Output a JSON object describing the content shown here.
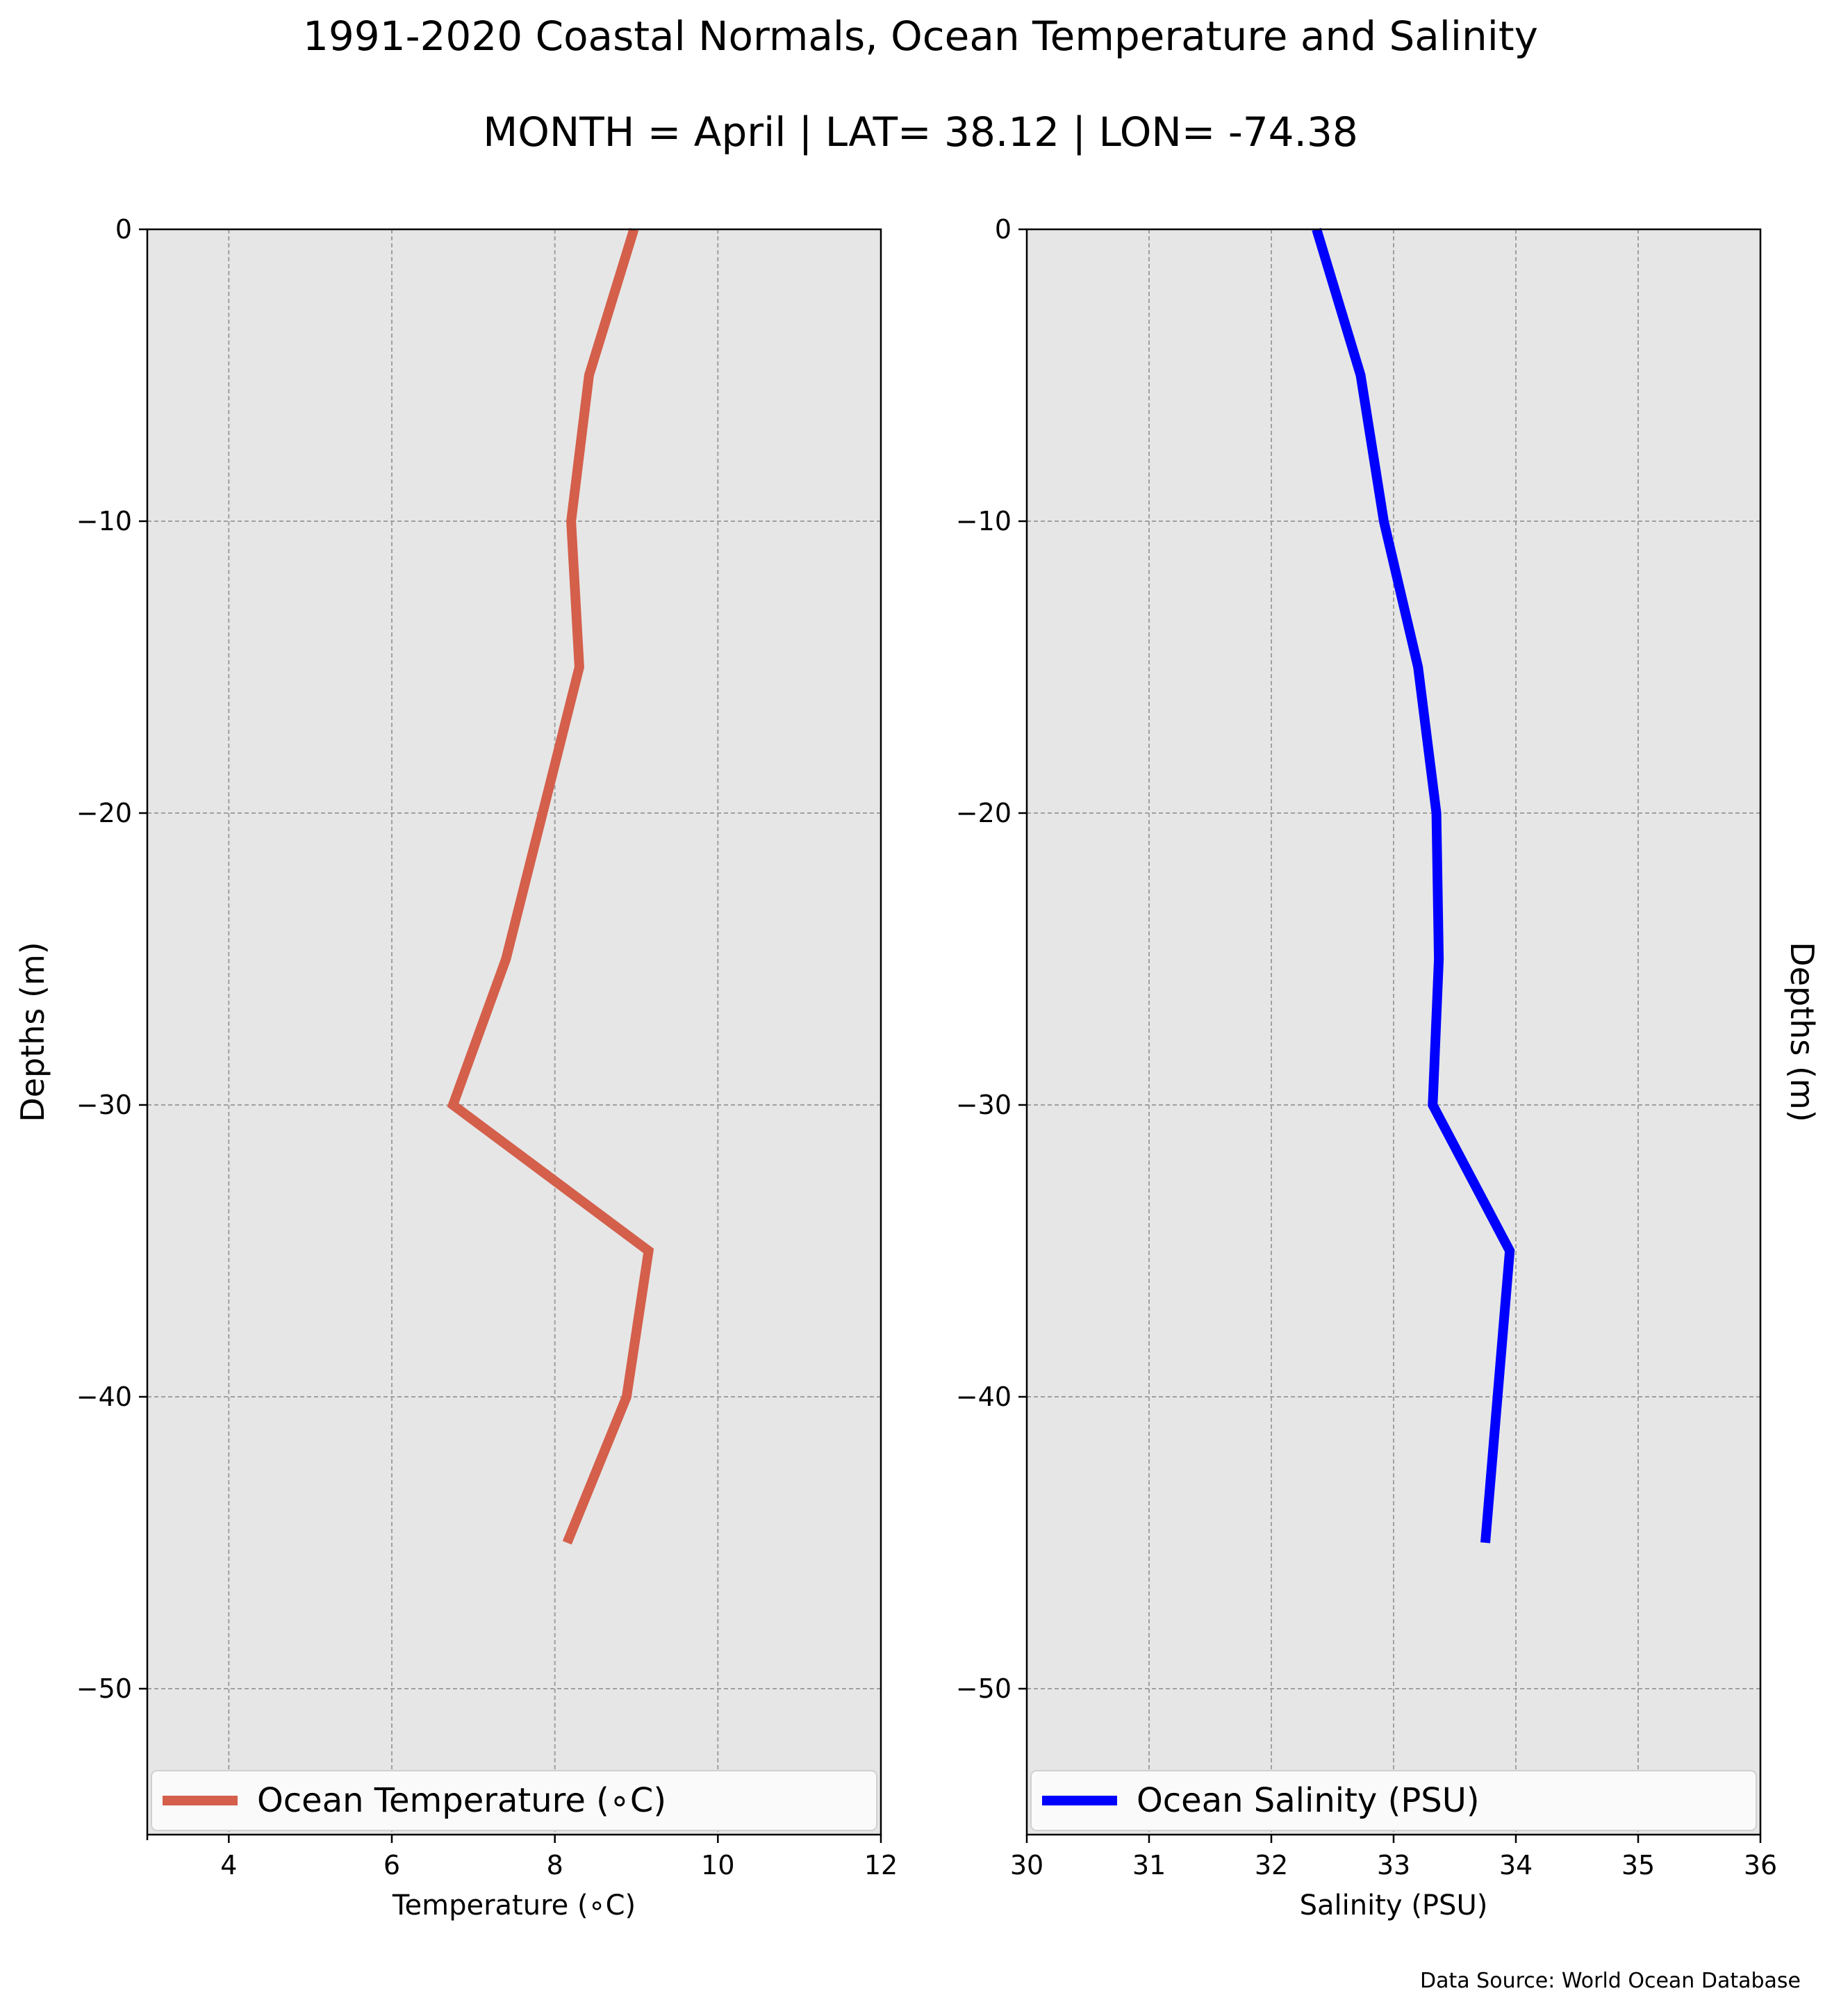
{
  "title": "1991-2020 Coastal Normals, Ocean Temperature and Salinity",
  "subtitle": "MONTH = April | LAT= 38.12 | LON= -74.38",
  "source": "Data Source: World Ocean Database",
  "colors": {
    "panel_background": "#e6e6e6",
    "grid": "#a0a0a0",
    "temperature": "#d45f4b",
    "salinity": "#0000ff"
  },
  "chart_data": [
    {
      "type": "line",
      "xlabel": "Temperature (∘C)",
      "ylabel": "Depths (m)",
      "xlim": [
        3,
        12
      ],
      "ylim": [
        -55,
        0
      ],
      "xticks": [
        4,
        6,
        8,
        10,
        12
      ],
      "xtick_labels": [
        "4",
        "6",
        "8",
        "10",
        "12"
      ],
      "yticks": [
        0,
        -10,
        -20,
        -30,
        -40,
        -50
      ],
      "ytick_labels": [
        "0",
        "−10",
        "−20",
        "−30",
        "−40",
        "−50"
      ],
      "grid": true,
      "legend_position": "bottom",
      "series": [
        {
          "name": "Ocean Temperature (∘C)",
          "color": "#d45f4b",
          "x": [
            8.97,
            8.42,
            8.2,
            8.3,
            7.4,
            6.75,
            9.15,
            8.88,
            8.15
          ],
          "y": [
            0,
            -5,
            -10,
            -15,
            -25,
            -30,
            -35,
            -40,
            -45
          ]
        }
      ]
    },
    {
      "type": "line",
      "xlabel": "Salinity (PSU)",
      "ylabel": "Depths (m)",
      "xlim": [
        30,
        36
      ],
      "ylim": [
        -55,
        0
      ],
      "xticks": [
        30,
        31,
        32,
        33,
        34,
        35,
        36
      ],
      "xtick_labels": [
        "30",
        "31",
        "32",
        "33",
        "34",
        "35",
        "36"
      ],
      "yticks": [
        0,
        -10,
        -20,
        -30,
        -40,
        -50
      ],
      "ytick_labels": [
        "0",
        "−10",
        "−20",
        "−30",
        "−40",
        "−50"
      ],
      "grid": true,
      "legend_position": "bottom",
      "series": [
        {
          "name": "Ocean Salinity (PSU)",
          "color": "#0000ff",
          "x": [
            32.37,
            32.73,
            32.92,
            33.2,
            33.35,
            33.37,
            33.32,
            33.95,
            33.75
          ],
          "y": [
            0,
            -5,
            -10,
            -15,
            -20,
            -25,
            -30,
            -35,
            -45
          ]
        }
      ]
    }
  ]
}
